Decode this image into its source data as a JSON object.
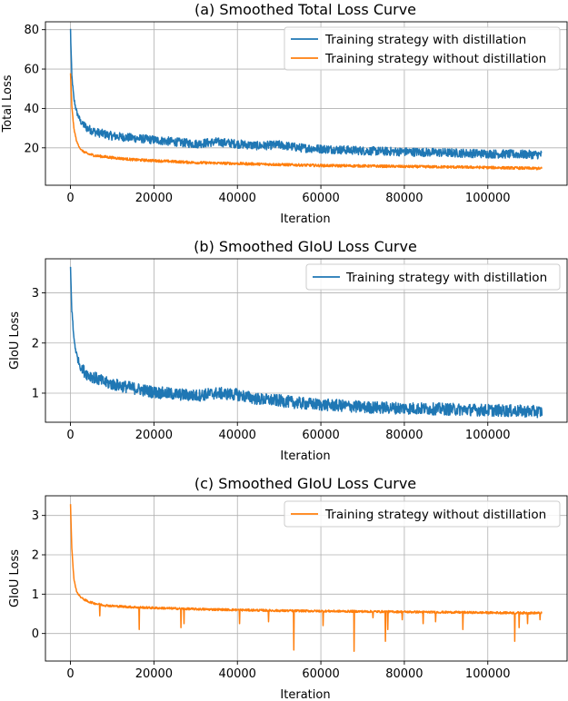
{
  "colors": {
    "with_distillation": "#1f77b4",
    "without_distillation": "#ff7f0e"
  },
  "chart_data": [
    {
      "type": "line",
      "title": "(a) Smoothed Total Loss Curve",
      "xlabel": "Iteration",
      "ylabel": "Total Loss",
      "xlim": [
        -6000,
        119000
      ],
      "ylim": [
        1,
        84
      ],
      "xticks": [
        0,
        20000,
        40000,
        60000,
        80000,
        100000
      ],
      "yticks": [
        20,
        40,
        60,
        80
      ],
      "grid": true,
      "legend_position": "top-right",
      "series": [
        {
          "name": "Training strategy with distillation",
          "color": "#1f77b4",
          "trend_x": [
            0,
            300,
            800,
            1500,
            2500,
            4000,
            6000,
            8000,
            10000,
            15000,
            20000,
            25000,
            30000,
            35000,
            40000,
            45000,
            50000,
            55000,
            60000,
            65000,
            70000,
            80000,
            90000,
            100000,
            113000
          ],
          "trend_y": [
            80,
            57,
            45,
            38,
            33,
            30,
            28,
            27,
            26,
            25,
            24,
            23,
            22,
            23,
            22,
            21,
            21.5,
            20,
            19.5,
            19,
            18.5,
            18,
            17.5,
            17,
            16.5
          ],
          "noise": 4
        },
        {
          "name": "Training strategy without distillation",
          "color": "#ff7f0e",
          "trend_x": [
            0,
            300,
            800,
            1500,
            2500,
            4000,
            6000,
            8000,
            10000,
            15000,
            20000,
            30000,
            40000,
            50000,
            60000,
            70000,
            80000,
            90000,
            100000,
            113000
          ],
          "trend_y": [
            58,
            42,
            30,
            23,
            19,
            17,
            16,
            15.5,
            15,
            14,
            13.5,
            12.5,
            12,
            11.5,
            11,
            10.8,
            10.5,
            10.3,
            10,
            9.5
          ],
          "noise": 1.2
        }
      ]
    },
    {
      "type": "line",
      "title": "(b) Smoothed GIoU Loss Curve",
      "xlabel": "Iteration",
      "ylabel": "GIoU Loss",
      "xlim": [
        -6000,
        119000
      ],
      "ylim": [
        0.42,
        3.68
      ],
      "xticks": [
        0,
        20000,
        40000,
        60000,
        80000,
        100000
      ],
      "yticks": [
        1,
        2,
        3
      ],
      "grid": true,
      "legend_position": "top-right",
      "series": [
        {
          "name": "Training strategy with distillation",
          "color": "#1f77b4",
          "trend_x": [
            0,
            300,
            800,
            1500,
            2500,
            4000,
            6000,
            8000,
            10000,
            15000,
            20000,
            25000,
            30000,
            35000,
            40000,
            45000,
            50000,
            55000,
            60000,
            65000,
            70000,
            80000,
            90000,
            100000,
            113000
          ],
          "trend_y": [
            3.5,
            2.7,
            2.1,
            1.75,
            1.5,
            1.38,
            1.3,
            1.22,
            1.18,
            1.1,
            1.02,
            0.98,
            0.95,
            1.0,
            0.97,
            0.88,
            0.85,
            0.8,
            0.77,
            0.75,
            0.72,
            0.7,
            0.68,
            0.66,
            0.63
          ],
          "noise": 0.22
        }
      ]
    },
    {
      "type": "line",
      "title": "(c) Smoothed GIoU Loss Curve",
      "xlabel": "Iteration",
      "ylabel": "GIoU Loss",
      "xlim": [
        -6000,
        119000
      ],
      "ylim": [
        -0.7,
        3.5
      ],
      "xticks": [
        0,
        20000,
        40000,
        60000,
        80000,
        100000
      ],
      "yticks": [
        0,
        1,
        2,
        3
      ],
      "grid": true,
      "legend_position": "top-right",
      "series": [
        {
          "name": "Training strategy without distillation",
          "color": "#ff7f0e",
          "trend_x": [
            0,
            300,
            800,
            1500,
            2500,
            4000,
            6000,
            8000,
            10000,
            15000,
            20000,
            30000,
            40000,
            50000,
            60000,
            70000,
            80000,
            90000,
            100000,
            113000
          ],
          "trend_y": [
            3.3,
            2.2,
            1.4,
            1.05,
            0.92,
            0.82,
            0.76,
            0.72,
            0.7,
            0.67,
            0.65,
            0.62,
            0.6,
            0.58,
            0.57,
            0.56,
            0.55,
            0.54,
            0.53,
            0.52
          ],
          "noise": 0.05,
          "spikes": [
            [
              7000,
              0.45
            ],
            [
              16500,
              0.1
            ],
            [
              26500,
              0.15
            ],
            [
              27200,
              0.25
            ],
            [
              40500,
              0.25
            ],
            [
              47500,
              0.3
            ],
            [
              53500,
              -0.42
            ],
            [
              60500,
              0.2
            ],
            [
              68000,
              -0.45
            ],
            [
              72500,
              0.4
            ],
            [
              75500,
              -0.2
            ],
            [
              76000,
              0.1
            ],
            [
              79500,
              0.35
            ],
            [
              84500,
              0.25
            ],
            [
              87500,
              0.3
            ],
            [
              94000,
              0.1
            ],
            [
              106500,
              -0.2
            ],
            [
              107500,
              0.15
            ],
            [
              109500,
              0.25
            ],
            [
              112500,
              0.35
            ]
          ]
        }
      ]
    }
  ]
}
